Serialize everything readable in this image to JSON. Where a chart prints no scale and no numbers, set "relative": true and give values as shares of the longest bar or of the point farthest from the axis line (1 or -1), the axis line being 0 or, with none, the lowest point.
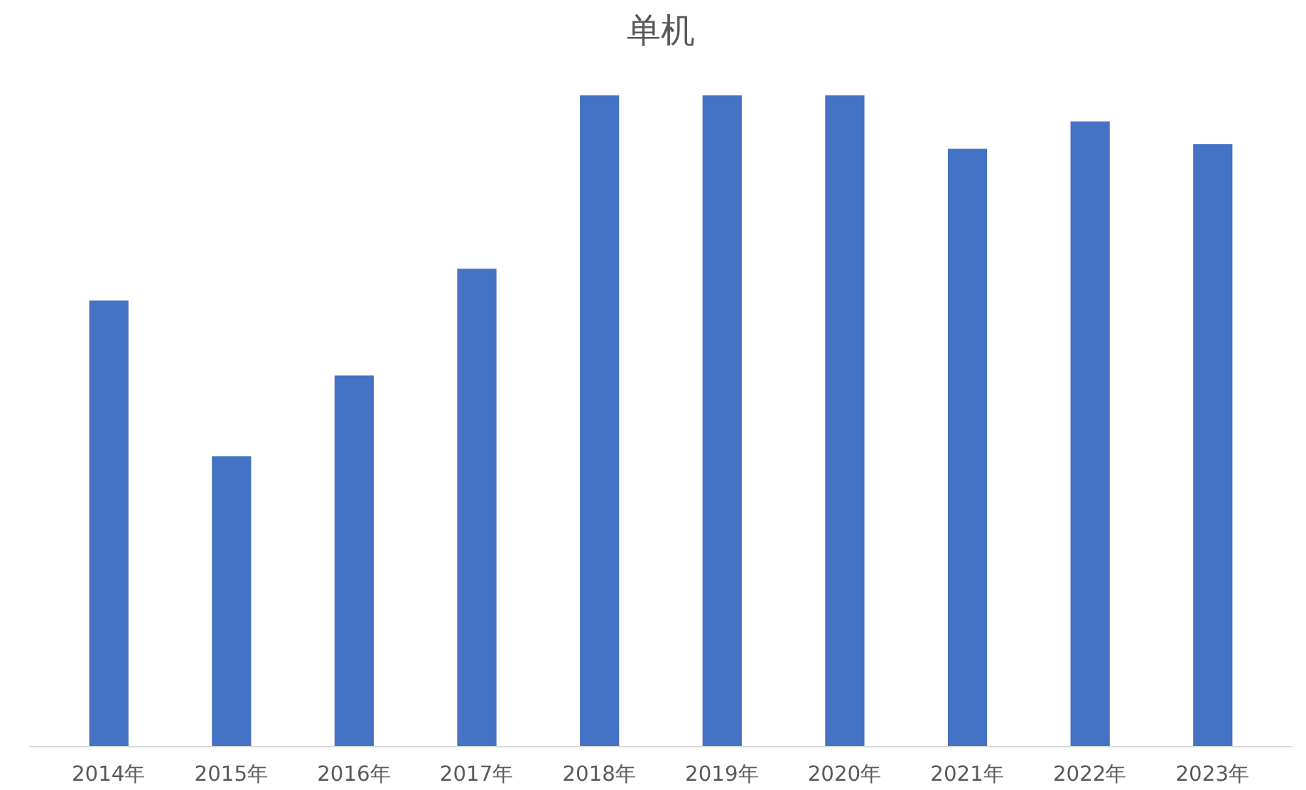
{
  "chart_data": {
    "type": "bar",
    "title": "单机",
    "relative": true,
    "categories": [
      "2014年",
      "2015年",
      "2016年",
      "2017年",
      "2018年",
      "2019年",
      "2020年",
      "2021年",
      "2022年",
      "2023年"
    ],
    "color": "#4472c4",
    "values": [
      0.685,
      0.446,
      0.57,
      0.734,
      1,
      1,
      1,
      0.918,
      0.96,
      0.925
    ]
  }
}
